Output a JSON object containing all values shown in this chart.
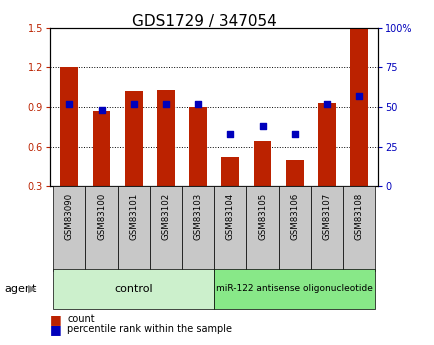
{
  "title": "GDS1729 / 347054",
  "samples": [
    "GSM83090",
    "GSM83100",
    "GSM83101",
    "GSM83102",
    "GSM83103",
    "GSM83104",
    "GSM83105",
    "GSM83106",
    "GSM83107",
    "GSM83108"
  ],
  "counts": [
    1.2,
    0.87,
    1.02,
    1.03,
    0.9,
    0.52,
    0.64,
    0.5,
    0.93,
    1.5
  ],
  "percentiles": [
    52,
    48,
    52,
    52,
    52,
    33,
    38,
    33,
    52,
    57
  ],
  "ylim_left": [
    0.3,
    1.5
  ],
  "ylim_right": [
    0,
    100
  ],
  "yticks_left": [
    0.3,
    0.6,
    0.9,
    1.2,
    1.5
  ],
  "yticks_right": [
    0,
    25,
    50,
    75,
    100
  ],
  "ytick_labels_right": [
    "0",
    "25",
    "50",
    "75",
    "100%"
  ],
  "bar_color": "#bb2200",
  "dot_color": "#0000bb",
  "control_label": "control",
  "treatment_label": "miR-122 antisense oligonucleotide",
  "agent_label": "agent",
  "legend_count_label": "count",
  "legend_percentile_label": "percentile rank within the sample",
  "bg_color_xtick": "#c8c8c8",
  "bg_color_control": "#ccf0cc",
  "bg_color_treatment": "#88e888",
  "bar_width": 0.55,
  "title_fontsize": 11,
  "tick_fontsize": 7,
  "label_fontsize": 8
}
